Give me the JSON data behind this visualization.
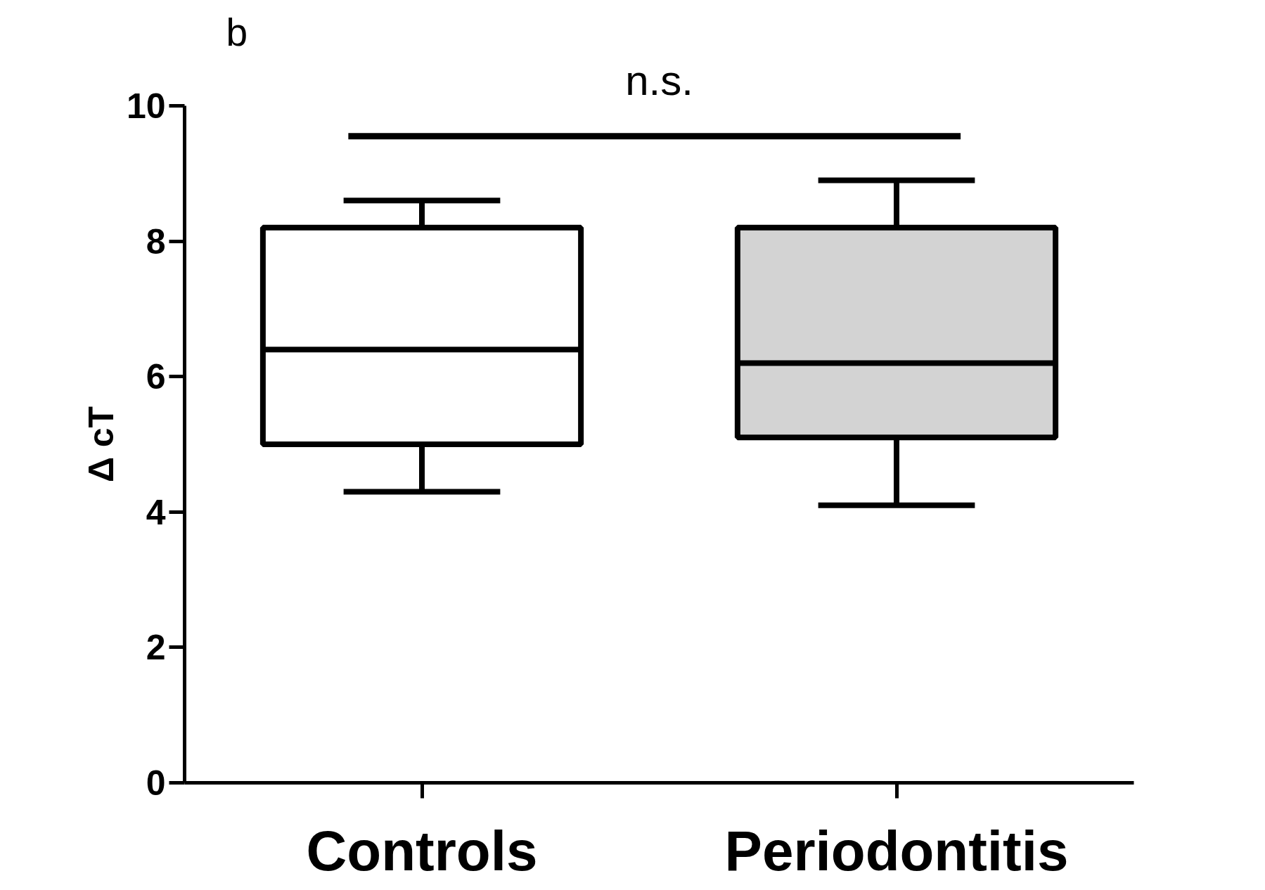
{
  "chart_data": {
    "type": "box",
    "categories": [
      "Controls",
      "Periodontitis"
    ],
    "boxes": [
      {
        "low": 4.3,
        "q1": 5.0,
        "median": 6.4,
        "q3": 8.2,
        "high": 8.6
      },
      {
        "low": 4.1,
        "q1": 5.1,
        "median": 6.2,
        "q3": 8.2,
        "high": 8.9
      }
    ],
    "colors": [
      "#ffffff",
      "#d3d3d3"
    ],
    "ylabel": "Δ cT",
    "ylim": [
      0,
      10
    ],
    "yticks": [
      0,
      2,
      4,
      6,
      8,
      10
    ],
    "annotations": [
      "b",
      "n.s."
    ]
  }
}
